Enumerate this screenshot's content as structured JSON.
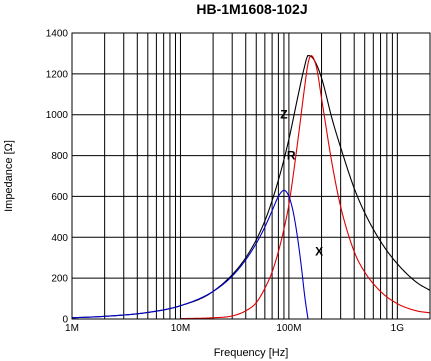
{
  "chart_data": {
    "type": "line",
    "title": "HB-1M1608-102J",
    "xlabel": "Frequency [Hz]",
    "ylabel": "Impedance [Ω]",
    "x_scale": "log",
    "xlim": [
      1000000,
      2000000000
    ],
    "ylim": [
      0,
      1400
    ],
    "x_ticks": [
      {
        "value": 1000000,
        "label": "1M"
      },
      {
        "value": 10000000,
        "label": "10M"
      },
      {
        "value": 100000000,
        "label": "100M"
      },
      {
        "value": 1000000000,
        "label": "1G"
      }
    ],
    "y_ticks": [
      0,
      200,
      400,
      600,
      800,
      1000,
      1200,
      1400
    ],
    "grid": true,
    "series": [
      {
        "name": "Z",
        "color": "#000000",
        "x": [
          1000000,
          2000000,
          5000000,
          10000000,
          20000000,
          40000000,
          60000000,
          80000000,
          100000000,
          120000000,
          140000000,
          150000000,
          170000000,
          200000000,
          250000000,
          300000000,
          400000000,
          500000000,
          700000000,
          1000000000,
          1500000000,
          2000000000
        ],
        "values": [
          6,
          13,
          32,
          65,
          135,
          300,
          480,
          680,
          880,
          1080,
          1240,
          1290,
          1270,
          1180,
          980,
          840,
          640,
          520,
          380,
          270,
          180,
          140
        ]
      },
      {
        "name": "R",
        "color": "#e00000",
        "x": [
          10000000,
          20000000,
          30000000,
          40000000,
          50000000,
          60000000,
          70000000,
          80000000,
          90000000,
          100000000,
          120000000,
          140000000,
          150000000,
          160000000,
          180000000,
          200000000,
          250000000,
          300000000,
          400000000,
          500000000,
          700000000,
          1000000000,
          1500000000,
          2000000000
        ],
        "values": [
          2,
          6,
          15,
          40,
          80,
          150,
          230,
          330,
          440,
          560,
          860,
          1140,
          1250,
          1290,
          1230,
          1080,
          760,
          550,
          330,
          230,
          135,
          75,
          40,
          30
        ]
      },
      {
        "name": "X",
        "color": "#0000cc",
        "x": [
          1000000,
          2000000,
          5000000,
          10000000,
          20000000,
          30000000,
          40000000,
          50000000,
          60000000,
          70000000,
          80000000,
          90000000,
          100000000,
          110000000,
          120000000,
          130000000,
          140000000,
          150000000
        ],
        "values": [
          6,
          13,
          32,
          65,
          135,
          210,
          290,
          370,
          450,
          530,
          600,
          630,
          600,
          520,
          400,
          260,
          110,
          0
        ]
      }
    ],
    "annotations": [
      {
        "text": "Z",
        "x": 90000000,
        "y": 1000
      },
      {
        "text": "R",
        "x": 105000000,
        "y": 800
      },
      {
        "text": "X",
        "x": 190000000,
        "y": 330
      }
    ]
  }
}
